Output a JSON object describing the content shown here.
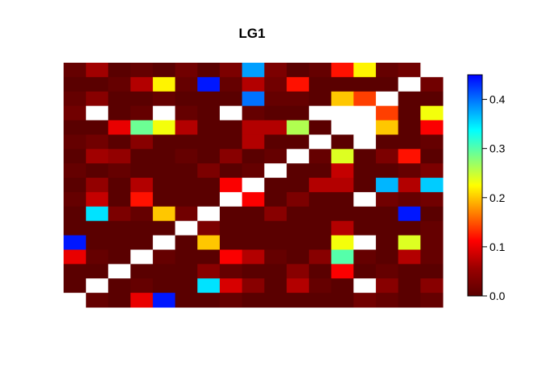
{
  "chart_data": {
    "type": "heatmap",
    "title": "LG1",
    "xlabel": "",
    "ylabel": "",
    "grid": false,
    "legend": "right",
    "colorbar": {
      "range": [
        0,
        0.45
      ],
      "ticks": [
        0.0,
        0.1,
        0.2,
        0.3,
        0.4
      ],
      "tick_labels": [
        "0.0",
        "0.1",
        "0.2",
        "0.3",
        "0.4"
      ],
      "colors": [
        "#5a0000",
        "#9a0000",
        "#ff0000",
        "#ff8000",
        "#ffff00",
        "#80ff80",
        "#00ffff",
        "#0080ff",
        "#0000ff"
      ]
    },
    "na_color": "#ffffff",
    "n_rows": 17,
    "n_cols": 17,
    "values": [
      [
        0.01,
        0.06,
        0.0,
        0.01,
        0.0,
        0.02,
        0.0,
        0.03,
        0.38,
        0.03,
        0.0,
        0.01,
        0.12,
        0.22,
        0.01,
        0.02,
        null
      ],
      [
        0.0,
        0.0,
        0.01,
        0.07,
        0.22,
        0.01,
        0.44,
        0.01,
        0.07,
        0.02,
        0.12,
        0.0,
        0.0,
        0.0,
        0.0,
        null,
        0.02
      ],
      [
        0.01,
        0.04,
        0.0,
        0.0,
        0.01,
        0.0,
        0.0,
        0.0,
        0.4,
        0.01,
        0.01,
        0.0,
        0.2,
        0.14,
        null,
        0.0,
        0.0
      ],
      [
        0.02,
        null,
        0.0,
        0.01,
        null,
        0.01,
        0.0,
        null,
        0.01,
        0.0,
        0.0,
        null,
        null,
        null,
        0.14,
        0.0,
        0.23
      ],
      [
        0.0,
        0.0,
        0.1,
        0.29,
        0.23,
        0.07,
        0.0,
        0.0,
        0.07,
        0.07,
        0.26,
        0.0,
        null,
        null,
        0.2,
        0.0,
        0.11
      ],
      [
        0.01,
        0.02,
        0.0,
        0.04,
        0.0,
        0.0,
        0.0,
        0.0,
        0.07,
        0.0,
        0.0,
        null,
        0.0,
        null,
        0.0,
        0.0,
        0.01
      ],
      [
        0.0,
        0.06,
        0.05,
        0.0,
        0.0,
        0.01,
        0.0,
        0.04,
        0.0,
        0.01,
        null,
        0.01,
        0.24,
        0.0,
        0.03,
        0.12,
        0.0
      ],
      [
        0.01,
        0.0,
        0.01,
        0.0,
        0.0,
        0.0,
        0.03,
        0.0,
        0.01,
        null,
        0.0,
        0.0,
        0.08,
        0.0,
        0.0,
        0.01,
        0.03
      ],
      [
        0.0,
        0.05,
        0.0,
        0.07,
        0.0,
        0.0,
        0.0,
        0.11,
        null,
        0.0,
        0.0,
        0.07,
        0.07,
        0.0,
        0.37,
        0.07,
        0.36
      ],
      [
        0.01,
        0.08,
        0.0,
        0.12,
        0.0,
        0.0,
        0.0,
        null,
        0.11,
        0.0,
        0.03,
        0.0,
        0.0,
        null,
        0.02,
        0.01,
        0.02
      ],
      [
        0.0,
        0.35,
        0.03,
        0.01,
        0.2,
        0.02,
        null,
        0.0,
        0.0,
        0.04,
        0.0,
        0.0,
        0.0,
        0.0,
        0.0,
        0.44,
        0.0
      ],
      [
        0.0,
        0.0,
        0.0,
        0.0,
        0.0,
        null,
        0.03,
        0.0,
        0.0,
        0.0,
        0.0,
        0.0,
        0.07,
        0.0,
        0.0,
        0.0,
        0.01
      ],
      [
        0.44,
        0.0,
        0.0,
        0.0,
        null,
        0.0,
        0.2,
        0.0,
        0.0,
        0.0,
        0.0,
        0.0,
        0.23,
        null,
        0.0,
        0.24,
        0.01
      ],
      [
        0.1,
        0.01,
        0.0,
        null,
        0.01,
        0.0,
        0.0,
        0.11,
        0.07,
        0.01,
        0.0,
        0.04,
        0.3,
        0.01,
        0.0,
        0.07,
        0.01
      ],
      [
        0.0,
        0.0,
        null,
        0.0,
        0.0,
        0.0,
        0.04,
        0.01,
        0.0,
        0.0,
        0.04,
        0.0,
        0.11,
        0.0,
        0.01,
        0.0,
        0.0
      ],
      [
        0.0,
        null,
        0.0,
        0.01,
        0.0,
        0.0,
        0.35,
        0.09,
        0.04,
        0.0,
        0.07,
        0.01,
        0.0,
        null,
        0.04,
        0.0,
        0.04
      ],
      [
        null,
        0.01,
        0.0,
        0.1,
        0.44,
        0.0,
        0.0,
        0.01,
        0.0,
        0.0,
        0.0,
        0.0,
        0.0,
        0.02,
        0.01,
        0.0,
        0.01
      ]
    ]
  }
}
